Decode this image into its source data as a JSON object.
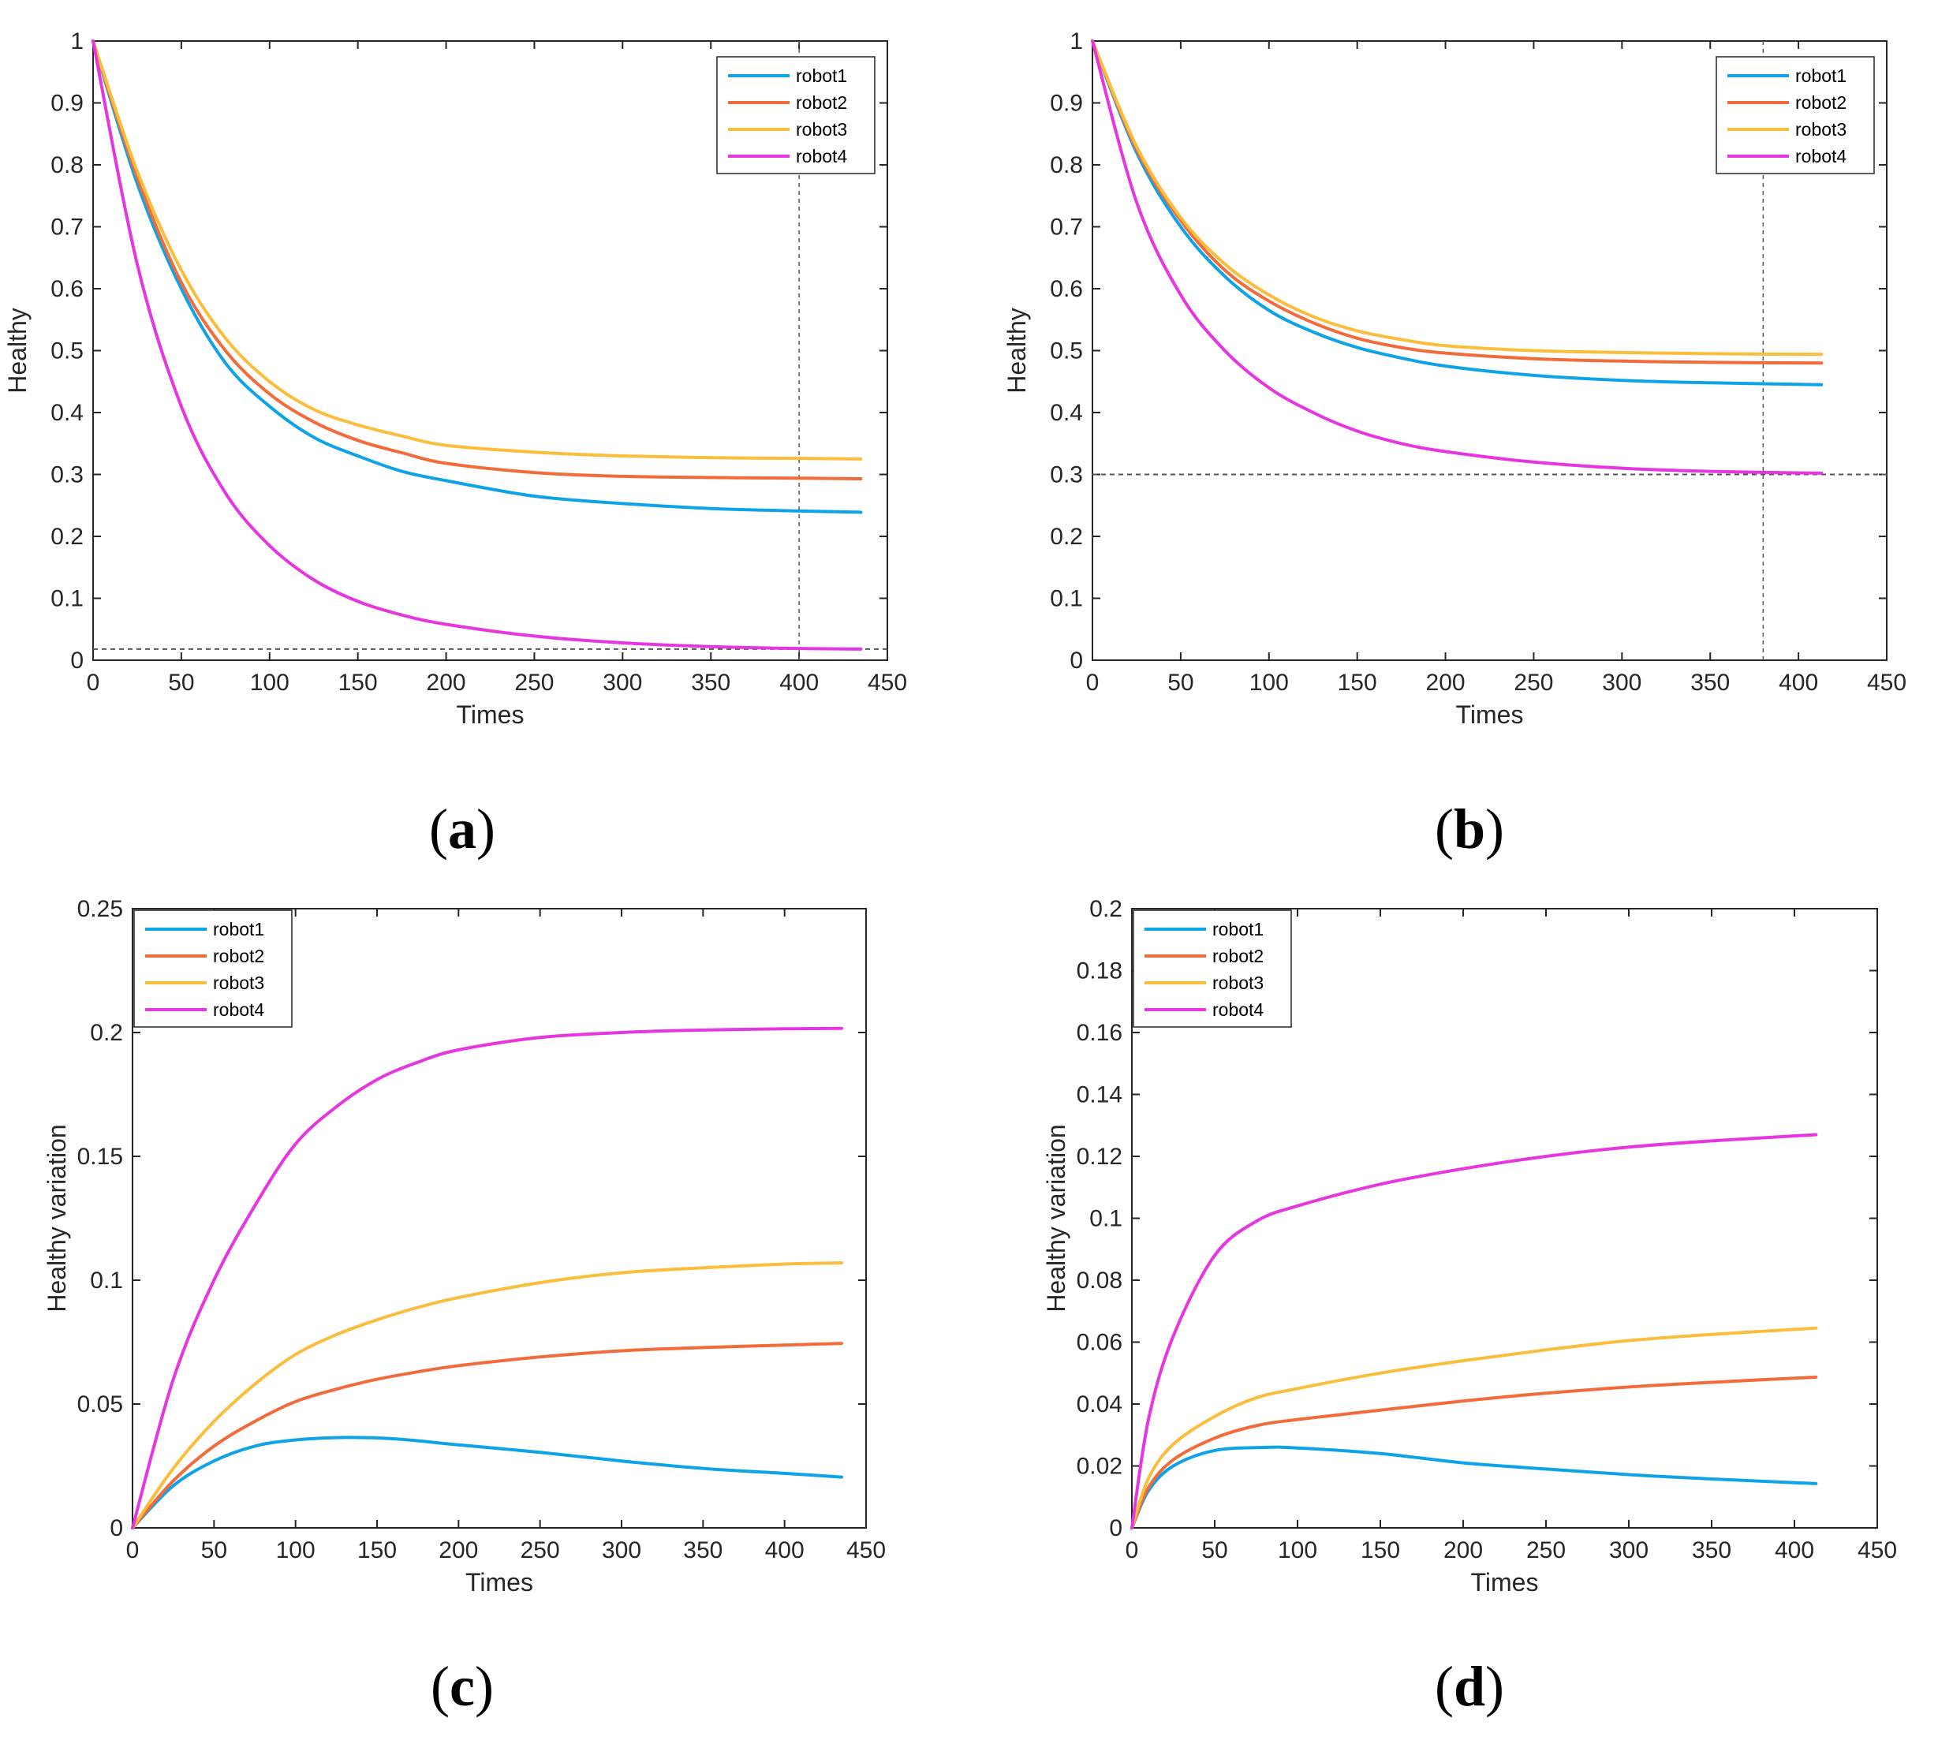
{
  "colors": {
    "robot1": "#0ea3e6",
    "robot2": "#f26b3a",
    "robot3": "#fbbd3c",
    "robot4": "#e536e0",
    "axis": "#262626",
    "guide": "#555555"
  },
  "chart_data": [
    {
      "id": "a",
      "panel_label": "a",
      "type": "line",
      "xlabel": "Times",
      "ylabel": "Healthy",
      "xlim": [
        0,
        450
      ],
      "ylim": [
        0,
        1
      ],
      "xticks": [
        "0",
        "50",
        "100",
        "150",
        "200",
        "250",
        "300",
        "350",
        "400",
        "450"
      ],
      "yticks": [
        "0",
        "0.1",
        "0.2",
        "0.3",
        "0.4",
        "0.5",
        "0.6",
        "0.7",
        "0.8",
        "0.9",
        "1"
      ],
      "legend": [
        "robot1",
        "robot2",
        "robot3",
        "robot4"
      ],
      "legend_position": "top-right",
      "x_end": 435,
      "hline": 0.018,
      "vline": 400,
      "series": [
        {
          "name": "robot1",
          "x": [
            0,
            25,
            50,
            75,
            100,
            125,
            150,
            175,
            200,
            250,
            300,
            350,
            400,
            435
          ],
          "values": [
            1.0,
            0.77,
            0.6,
            0.48,
            0.41,
            0.36,
            0.33,
            0.305,
            0.29,
            0.265,
            0.253,
            0.245,
            0.241,
            0.239
          ]
        },
        {
          "name": "robot2",
          "x": [
            0,
            25,
            50,
            75,
            100,
            125,
            150,
            175,
            200,
            250,
            300,
            350,
            400,
            435
          ],
          "values": [
            1.0,
            0.78,
            0.61,
            0.5,
            0.43,
            0.385,
            0.355,
            0.335,
            0.318,
            0.303,
            0.297,
            0.295,
            0.294,
            0.293
          ]
        },
        {
          "name": "robot3",
          "x": [
            0,
            25,
            50,
            75,
            100,
            125,
            150,
            175,
            200,
            250,
            300,
            350,
            400,
            435
          ],
          "values": [
            1.0,
            0.79,
            0.63,
            0.52,
            0.45,
            0.405,
            0.38,
            0.362,
            0.347,
            0.336,
            0.33,
            0.327,
            0.326,
            0.325
          ]
        },
        {
          "name": "robot4",
          "x": [
            0,
            25,
            50,
            75,
            100,
            125,
            150,
            175,
            200,
            250,
            300,
            350,
            400,
            435
          ],
          "values": [
            1.0,
            0.64,
            0.41,
            0.27,
            0.185,
            0.13,
            0.095,
            0.073,
            0.058,
            0.039,
            0.028,
            0.022,
            0.019,
            0.018
          ]
        }
      ]
    },
    {
      "id": "b",
      "panel_label": "b",
      "type": "line",
      "xlabel": "Times",
      "ylabel": "Healthy",
      "xlim": [
        0,
        450
      ],
      "ylim": [
        0,
        1
      ],
      "xticks": [
        "0",
        "50",
        "100",
        "150",
        "200",
        "250",
        "300",
        "350",
        "400",
        "450"
      ],
      "yticks": [
        "0",
        "0.1",
        "0.2",
        "0.3",
        "0.4",
        "0.5",
        "0.6",
        "0.7",
        "0.8",
        "0.9",
        "1"
      ],
      "legend": [
        "robot1",
        "robot2",
        "robot3",
        "robot4"
      ],
      "legend_position": "top-right",
      "x_end": 413,
      "hline": 0.3,
      "vline": 380,
      "series": [
        {
          "name": "robot1",
          "x": [
            0,
            25,
            50,
            75,
            100,
            125,
            150,
            175,
            200,
            250,
            300,
            350,
            413
          ],
          "values": [
            1.0,
            0.82,
            0.7,
            0.62,
            0.565,
            0.53,
            0.505,
            0.488,
            0.475,
            0.46,
            0.452,
            0.448,
            0.445
          ]
        },
        {
          "name": "robot2",
          "x": [
            0,
            25,
            50,
            75,
            100,
            125,
            150,
            175,
            200,
            250,
            300,
            350,
            413
          ],
          "values": [
            1.0,
            0.825,
            0.71,
            0.63,
            0.58,
            0.545,
            0.52,
            0.505,
            0.496,
            0.487,
            0.483,
            0.481,
            0.48
          ]
        },
        {
          "name": "robot3",
          "x": [
            0,
            25,
            50,
            75,
            100,
            125,
            150,
            175,
            200,
            250,
            300,
            350,
            413
          ],
          "values": [
            1.0,
            0.83,
            0.715,
            0.64,
            0.59,
            0.555,
            0.532,
            0.518,
            0.508,
            0.5,
            0.497,
            0.495,
            0.494
          ]
        },
        {
          "name": "robot4",
          "x": [
            0,
            25,
            50,
            75,
            100,
            125,
            150,
            175,
            200,
            250,
            300,
            350,
            413
          ],
          "values": [
            1.0,
            0.74,
            0.59,
            0.5,
            0.44,
            0.4,
            0.37,
            0.35,
            0.337,
            0.32,
            0.31,
            0.305,
            0.302
          ]
        }
      ]
    },
    {
      "id": "c",
      "panel_label": "c",
      "type": "line",
      "xlabel": "Times",
      "ylabel": "Healthy variation",
      "xlim": [
        0,
        450
      ],
      "ylim": [
        0,
        0.25
      ],
      "xticks": [
        "0",
        "50",
        "100",
        "150",
        "200",
        "250",
        "300",
        "350",
        "400",
        "450"
      ],
      "yticks": [
        "0",
        "0.05",
        "0.1",
        "0.15",
        "0.2",
        "0.25"
      ],
      "legend": [
        "robot1",
        "robot2",
        "robot3",
        "robot4"
      ],
      "legend_position": "top-left",
      "x_end": 435,
      "series": [
        {
          "name": "robot1",
          "x": [
            0,
            25,
            50,
            75,
            100,
            130,
            160,
            200,
            250,
            300,
            350,
            400,
            435
          ],
          "values": [
            0.0,
            0.017,
            0.027,
            0.033,
            0.0355,
            0.0365,
            0.036,
            0.0335,
            0.0305,
            0.027,
            0.024,
            0.022,
            0.0205
          ]
        },
        {
          "name": "robot2",
          "x": [
            0,
            25,
            50,
            75,
            100,
            125,
            150,
            175,
            200,
            250,
            300,
            350,
            400,
            435
          ],
          "values": [
            0.0,
            0.019,
            0.033,
            0.043,
            0.051,
            0.056,
            0.06,
            0.063,
            0.0655,
            0.069,
            0.0715,
            0.0728,
            0.0738,
            0.0745
          ]
        },
        {
          "name": "robot3",
          "x": [
            0,
            25,
            50,
            75,
            100,
            125,
            150,
            175,
            200,
            250,
            300,
            350,
            400,
            435
          ],
          "values": [
            0.0,
            0.024,
            0.043,
            0.058,
            0.07,
            0.078,
            0.084,
            0.089,
            0.093,
            0.099,
            0.103,
            0.105,
            0.1065,
            0.107
          ]
        },
        {
          "name": "robot4",
          "x": [
            0,
            25,
            50,
            75,
            100,
            125,
            150,
            175,
            200,
            250,
            300,
            350,
            400,
            435
          ],
          "values": [
            0.0,
            0.06,
            0.1,
            0.13,
            0.155,
            0.17,
            0.181,
            0.188,
            0.193,
            0.198,
            0.2,
            0.201,
            0.2015,
            0.2017
          ]
        }
      ]
    },
    {
      "id": "d",
      "panel_label": "d",
      "type": "line",
      "xlabel": "Times",
      "ylabel": "Healthy variation",
      "xlim": [
        0,
        450
      ],
      "ylim": [
        0,
        0.2
      ],
      "xticks": [
        "0",
        "50",
        "100",
        "150",
        "200",
        "250",
        "300",
        "350",
        "400",
        "450"
      ],
      "yticks": [
        "0",
        "0.02",
        "0.04",
        "0.06",
        "0.08",
        "0.1",
        "0.12",
        "0.14",
        "0.16",
        "0.18",
        "0.2"
      ],
      "legend": [
        "robot1",
        "robot2",
        "robot3",
        "robot4"
      ],
      "legend_position": "top-left",
      "x_end": 413,
      "series": [
        {
          "name": "robot1",
          "x": [
            0,
            10,
            25,
            50,
            80,
            100,
            150,
            200,
            250,
            300,
            350,
            413
          ],
          "values": [
            0.0,
            0.012,
            0.02,
            0.025,
            0.026,
            0.0258,
            0.024,
            0.021,
            0.019,
            0.0172,
            0.0158,
            0.0143
          ]
        },
        {
          "name": "robot2",
          "x": [
            0,
            10,
            25,
            50,
            75,
            100,
            150,
            200,
            250,
            300,
            350,
            413
          ],
          "values": [
            0.0,
            0.013,
            0.022,
            0.029,
            0.033,
            0.035,
            0.038,
            0.041,
            0.0435,
            0.0455,
            0.047,
            0.0487
          ]
        },
        {
          "name": "robot3",
          "x": [
            0,
            10,
            25,
            50,
            75,
            100,
            150,
            200,
            250,
            300,
            350,
            413
          ],
          "values": [
            0.0,
            0.016,
            0.027,
            0.036,
            0.042,
            0.045,
            0.05,
            0.054,
            0.0575,
            0.0605,
            0.0625,
            0.0645
          ]
        },
        {
          "name": "robot4",
          "x": [
            0,
            10,
            25,
            50,
            75,
            100,
            150,
            200,
            250,
            300,
            350,
            413
          ],
          "values": [
            0.0,
            0.035,
            0.062,
            0.088,
            0.099,
            0.104,
            0.111,
            0.116,
            0.12,
            0.123,
            0.125,
            0.127
          ]
        }
      ]
    }
  ]
}
